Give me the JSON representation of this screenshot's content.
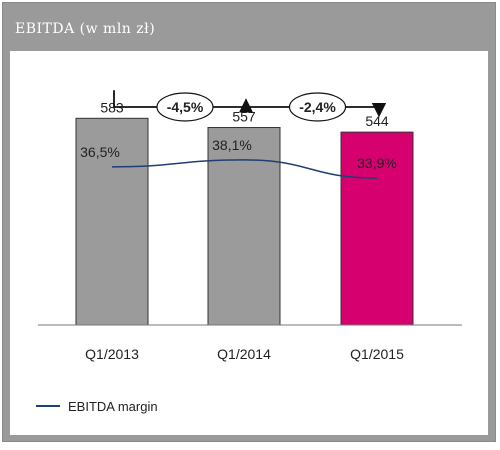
{
  "header": {
    "title": "EBITDA (w mln zł)"
  },
  "colors": {
    "bar": "#9b9b9b",
    "bar_highlight": "#d6006f",
    "line": "#1f3f73",
    "pct_highlight": "#e8e8e8"
  },
  "chart_data": {
    "type": "bar",
    "title": "EBITDA (w mln zł)",
    "categories": [
      "Q1/2013",
      "Q1/2014",
      "Q1/2015"
    ],
    "series": [
      {
        "values": [
          583,
          557,
          544
        ]
      },
      {
        "name": "EBITDA margin",
        "type": "line",
        "values": [
          36.5,
          38.1,
          33.9
        ],
        "labels": [
          "36,5%",
          "38,1%",
          "33,9%"
        ]
      }
    ],
    "value_labels": [
      "583",
      "557",
      "544"
    ],
    "changes": [
      {
        "from": "Q1/2013",
        "to": "Q1/2014",
        "label": "-4,5%"
      },
      {
        "from": "Q1/2014",
        "to": "Q1/2015",
        "label": "-2,4%"
      }
    ],
    "highlight_index": 2,
    "ylim": [
      0,
      660
    ],
    "margin_ylim": [
      0,
      54
    ],
    "grid": false,
    "legend": {
      "position": "bottom-left",
      "entries": [
        "EBITDA margin"
      ]
    }
  }
}
